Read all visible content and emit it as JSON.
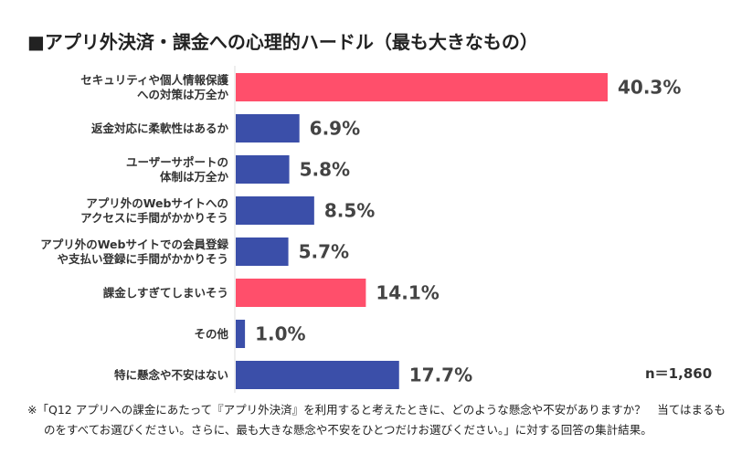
{
  "chart_data": {
    "type": "bar",
    "orientation": "horizontal",
    "title": "■アプリ外決済・課金への心理的ハードル（最も大きなもの）",
    "categories": [
      "セキュリティや個人情報保護\nへの対策は万全か",
      "返金対応に柔軟性はあるか",
      "ユーザーサポートの\n体制は万全か",
      "アプリ外のWebサイトへの\nアクセスに手間がかかりそう",
      "アプリ外のWebサイトでの会員登録\nや支払い登録に手間がかかりそう",
      "課金しすぎてしまいそう",
      "その他",
      "特に懸念や不安はない"
    ],
    "values": [
      40.3,
      6.9,
      5.8,
      8.5,
      5.7,
      14.1,
      1.0,
      17.7
    ],
    "value_labels": [
      "40.3%",
      "6.9%",
      "5.8%",
      "8.5%",
      "5.7%",
      "14.1%",
      "1.0%",
      "17.7%"
    ],
    "highlight": [
      true,
      false,
      false,
      false,
      false,
      true,
      false,
      false
    ],
    "colors": {
      "highlight": "#ff4f6b",
      "normal": "#3b4fa9"
    },
    "xlim": [
      0,
      50
    ],
    "grid": false
  },
  "sample_size": "n＝1,860",
  "footnote": "※「Q12 アプリへの課金にあたって『アプリ外決済』を利用すると考えたときに、どのような懸念や不安がありますか？　当てはまるものをすべてお選びください。さらに、最も大きな懸念や不安をひとつだけお選びください。」に対する回答の集計結果。"
}
